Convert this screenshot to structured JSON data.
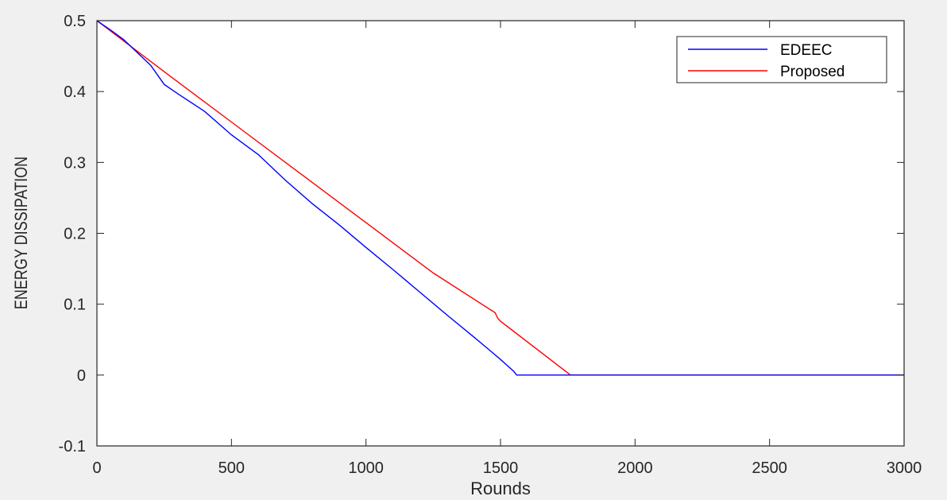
{
  "chart_data": {
    "type": "line",
    "title": "",
    "xlabel": "Rounds",
    "ylabel": "ENERGY DISSIPATION",
    "xlim": [
      0,
      3000
    ],
    "ylim": [
      -0.1,
      0.5
    ],
    "xticks": [
      0,
      500,
      1000,
      1500,
      2000,
      2500,
      3000
    ],
    "xtick_labels": [
      "0",
      "500",
      "1000",
      "1500",
      "2000",
      "2500",
      "3000"
    ],
    "yticks": [
      -0.1,
      0,
      0.1,
      0.2,
      0.3,
      0.4,
      0.5
    ],
    "ytick_labels": [
      "-0.1",
      "0",
      "0.1",
      "0.2",
      "0.3",
      "0.4",
      "0.5"
    ],
    "grid": false,
    "legend_position": "top-right",
    "series": [
      {
        "name": "EDEEC",
        "color": "#0000ff",
        "x": [
          0,
          50,
          100,
          150,
          200,
          250,
          300,
          400,
          500,
          600,
          700,
          800,
          900,
          1000,
          1100,
          1200,
          1300,
          1400,
          1450,
          1500,
          1550,
          1560,
          1600,
          1800,
          2000,
          2500,
          3000
        ],
        "y": [
          0.5,
          0.487,
          0.473,
          0.455,
          0.437,
          0.41,
          0.397,
          0.372,
          0.339,
          0.311,
          0.275,
          0.242,
          0.212,
          0.18,
          0.149,
          0.117,
          0.085,
          0.054,
          0.038,
          0.022,
          0.005,
          0.0,
          0.0,
          0.0,
          0.0,
          0.0,
          0.0
        ]
      },
      {
        "name": "Proposed",
        "color": "#ff0000",
        "x": [
          0,
          250,
          500,
          750,
          1000,
          1250,
          1480,
          1490,
          1500,
          1760,
          2000,
          2500,
          3000
        ],
        "y": [
          0.5,
          0.428,
          0.357,
          0.286,
          0.215,
          0.144,
          0.088,
          0.08,
          0.076,
          0.0,
          0.0,
          0.0,
          0.0
        ]
      }
    ]
  }
}
